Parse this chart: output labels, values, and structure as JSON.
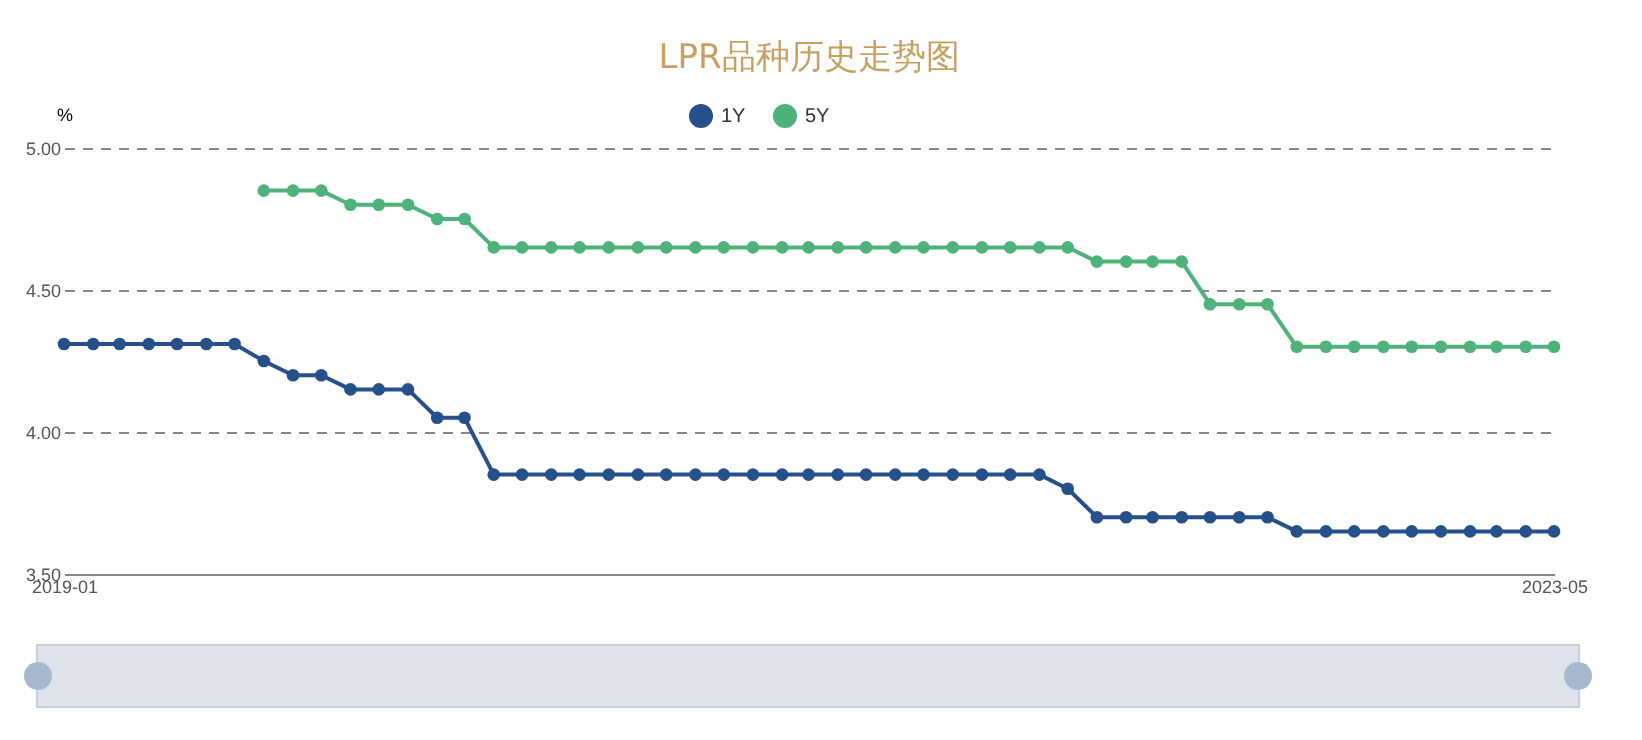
{
  "chart_data": {
    "type": "line",
    "title": "LPR品种历史走势图",
    "ylabel": "%",
    "x": [
      "2019-01",
      "2019-02",
      "2019-03",
      "2019-04",
      "2019-05",
      "2019-06",
      "2019-07",
      "2019-08",
      "2019-09",
      "2019-10",
      "2019-11",
      "2019-12",
      "2020-01",
      "2020-02",
      "2020-03",
      "2020-04",
      "2020-05",
      "2020-06",
      "2020-07",
      "2020-08",
      "2020-09",
      "2020-10",
      "2020-11",
      "2020-12",
      "2021-01",
      "2021-02",
      "2021-03",
      "2021-04",
      "2021-05",
      "2021-06",
      "2021-07",
      "2021-08",
      "2021-09",
      "2021-10",
      "2021-11",
      "2021-12",
      "2022-01",
      "2022-02",
      "2022-03",
      "2022-04",
      "2022-05",
      "2022-06",
      "2022-07",
      "2022-08",
      "2022-09",
      "2022-10",
      "2022-11",
      "2022-12",
      "2023-01",
      "2023-02",
      "2023-03",
      "2023-04",
      "2023-05"
    ],
    "series": [
      {
        "name": "1Y",
        "color": "#25508a",
        "values": [
          4.31,
          4.31,
          4.31,
          4.31,
          4.31,
          4.31,
          4.31,
          4.25,
          4.2,
          4.2,
          4.15,
          4.15,
          4.15,
          4.05,
          4.05,
          3.85,
          3.85,
          3.85,
          3.85,
          3.85,
          3.85,
          3.85,
          3.85,
          3.85,
          3.85,
          3.85,
          3.85,
          3.85,
          3.85,
          3.85,
          3.85,
          3.85,
          3.85,
          3.85,
          3.85,
          3.8,
          3.7,
          3.7,
          3.7,
          3.7,
          3.7,
          3.7,
          3.7,
          3.65,
          3.65,
          3.65,
          3.65,
          3.65,
          3.65,
          3.65,
          3.65,
          3.65,
          3.65
        ]
      },
      {
        "name": "5Y",
        "color": "#4db37a",
        "values": [
          null,
          null,
          null,
          null,
          null,
          null,
          null,
          4.85,
          4.85,
          4.85,
          4.8,
          4.8,
          4.8,
          4.75,
          4.75,
          4.65,
          4.65,
          4.65,
          4.65,
          4.65,
          4.65,
          4.65,
          4.65,
          4.65,
          4.65,
          4.65,
          4.65,
          4.65,
          4.65,
          4.65,
          4.65,
          4.65,
          4.65,
          4.65,
          4.65,
          4.65,
          4.6,
          4.6,
          4.6,
          4.6,
          4.45,
          4.45,
          4.45,
          4.3,
          4.3,
          4.3,
          4.3,
          4.3,
          4.3,
          4.3,
          4.3,
          4.3,
          4.3
        ]
      }
    ],
    "xlim": [
      "2019-01",
      "2023-05"
    ],
    "xticks": [
      "2019-01",
      "2023-05"
    ],
    "ylim": [
      3.5,
      5.0
    ],
    "yticks": [
      {
        "value": 3.5,
        "label": "3.50"
      },
      {
        "value": 4,
        "label": "4.00"
      },
      {
        "value": 4.5,
        "label": "4.50"
      },
      {
        "value": 5,
        "label": "5.00"
      }
    ],
    "grid": "y",
    "legend": "top",
    "marker": "circle",
    "line_style": "solid"
  }
}
